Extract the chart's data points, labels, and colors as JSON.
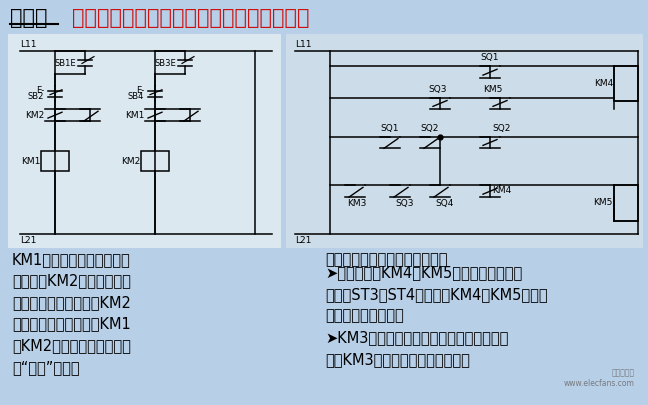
{
  "bg_color": "#b8cfe8",
  "title_black": "互锁：",
  "title_red": "一种联锁关系，强调触点之间的互相作用。",
  "left_text": "KM1动作后，它的动断辅助\n触点就将KM2接触器的线圈\n通电回路断开，抑制了KM2\n再动作，反之也一样，KM1\n和KM2的两对动断触点，称\n做“互锁”触点。",
  "right_text1": "操作手柄和行程开关形成联锁：",
  "right_text2": "➤抜动手柄，KM4或KM5仍能得电。再抜动\n手柄使ST3或ST4也动作，KM4或KM5失电，\n进给运动自动停止。\n➤KM3得电主轴旋转后，才允许接通进给回\n路。KM3打开，进给也自动停止。",
  "watermark": "电子发烧友\nwww.elecfans.com",
  "font_size_title": 15,
  "font_size_body": 10.5
}
